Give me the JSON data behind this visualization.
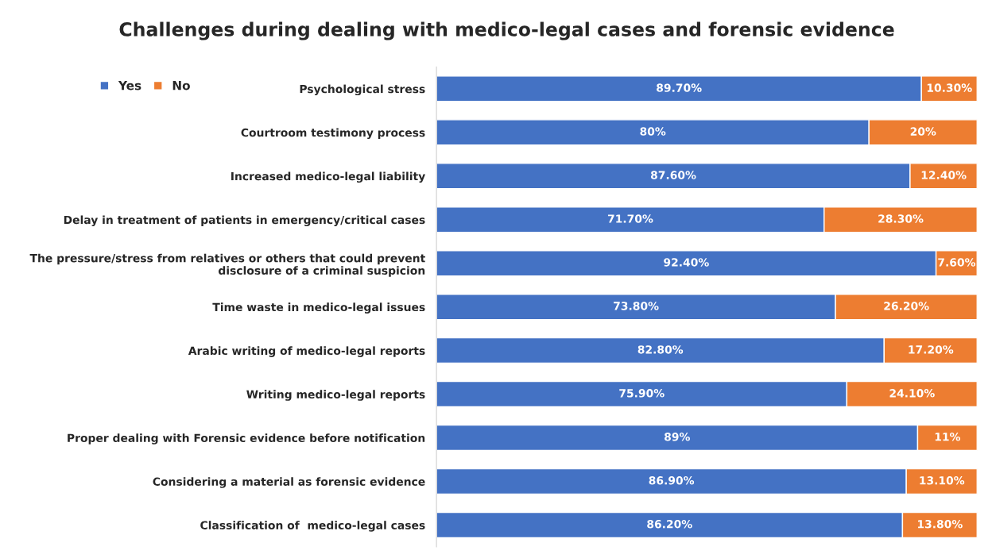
{
  "chart_data": {
    "type": "bar",
    "orientation": "horizontal",
    "stacked": true,
    "title": "Challenges during dealing with medico-legal cases and forensic evidence",
    "categories": [
      "Psychological stress",
      "Courtroom testimony process",
      "Increased medico-legal liability",
      "Delay in treatment of patients in emergency/critical cases",
      "The pressure/stress from relatives or others that could prevent\ndisclosure of a criminal suspicion",
      "Time waste in medico-legal issues",
      "Arabic writing of medico-legal reports",
      "Writing medico-legal reports",
      "Proper dealing with Forensic evidence before notification",
      "Considering a material as forensic evidence",
      "Classification of  medico-legal cases"
    ],
    "series": [
      {
        "name": "Yes",
        "color": "#4472c4",
        "values": [
          89.7,
          80,
          87.6,
          71.7,
          92.4,
          73.8,
          82.8,
          75.9,
          89,
          86.9,
          86.2
        ],
        "value_labels": [
          "89.70%",
          "80%",
          "87.60%",
          "71.70%",
          "92.40%",
          "73.80%",
          "82.80%",
          "75.90%",
          "89%",
          "86.90%",
          "86.20%"
        ]
      },
      {
        "name": "No",
        "color": "#ed7d31",
        "values": [
          10.3,
          20,
          12.4,
          28.3,
          7.6,
          26.2,
          17.2,
          24.1,
          11,
          13.1,
          13.8
        ],
        "value_labels": [
          "10.30%",
          "20%",
          "12.40%",
          "28.30%",
          "7.60%",
          "26.20%",
          "17.20%",
          "24.10%",
          "11%",
          "13.10%",
          "13.80%"
        ]
      }
    ],
    "xlim": [
      0,
      100
    ],
    "tick_labels": "y",
    "legend": "top left"
  }
}
